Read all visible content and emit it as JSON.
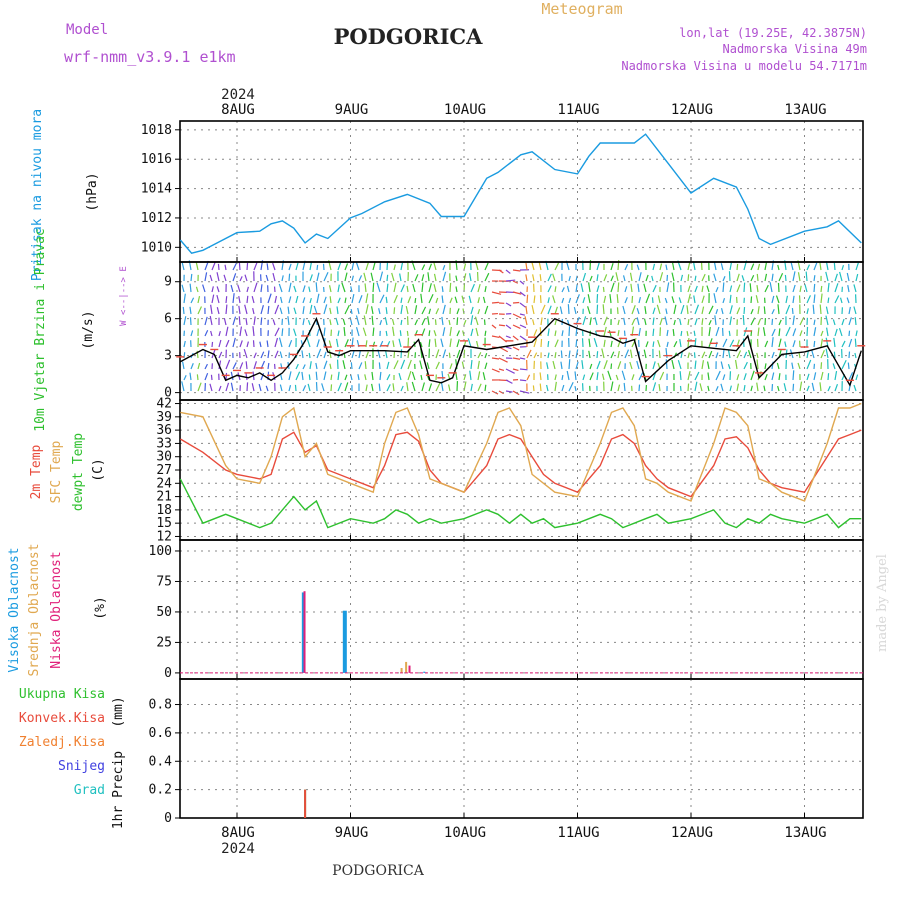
{
  "header": {
    "model_label": "Model",
    "model_value": "wrf-nmm_v3.9.1  e1km",
    "title": "PODGORICA",
    "meteogram_label": "Meteogram",
    "lonlat": "lon,lat (19.25E, 42.3875N)",
    "elevation": "Nadmorska Visina 49m",
    "model_elevation": "Nadmorska Visina u modelu 54.7171m",
    "year_top": "2024",
    "year_bottom": "2024",
    "footer_title": "PODGORICA",
    "credit": "made by Angel"
  },
  "colors": {
    "pressure": "#1a9be0",
    "temp2m": "#e84b3c",
    "sfc_temp": "#e0a850",
    "dewpoint": "#2ec02e",
    "wind_speed": "#000000",
    "label_purple": "#b050d0",
    "label_orange": "#e0b060",
    "cloud_high": "#1a9be0",
    "cloud_mid": "#e0a850",
    "cloud_low": "#e0207a",
    "precip_total": "#2ec02e",
    "precip_conv": "#e84b3c",
    "precip_strat": "#f08030",
    "snow": "#4040e0",
    "hail": "#20c0c0"
  },
  "chart_data": [
    {
      "type": "line",
      "panel": "pressure",
      "ylabel": "Pritisak na nivou mora",
      "unit": "(hPa)",
      "ylim": [
        1009,
        1018.6
      ],
      "yticks": [
        1010,
        1012,
        1014,
        1016,
        1018
      ],
      "x_dates": [
        "8AUG",
        "9AUG",
        "10AUG",
        "11AUG",
        "12AUG",
        "13AUG"
      ],
      "grid": true,
      "x": [
        -0.5,
        -0.4,
        -0.3,
        -0.2,
        0.0,
        0.2,
        0.3,
        0.4,
        0.5,
        0.6,
        0.7,
        0.8,
        1.0,
        1.1,
        1.3,
        1.5,
        1.7,
        1.8,
        2.0,
        2.2,
        2.3,
        2.5,
        2.6,
        2.8,
        3.0,
        3.1,
        3.2,
        3.5,
        3.6,
        3.8,
        4.0,
        4.2,
        4.4,
        4.5,
        4.6,
        4.7,
        5.0,
        5.2,
        5.3,
        5.5
      ],
      "series": [
        {
          "values": [
            1010.5,
            1009.6,
            1009.8,
            1010.2,
            1011.0,
            1011.1,
            1011.6,
            1011.8,
            1011.3,
            1010.3,
            1010.9,
            1010.6,
            1012.0,
            1012.3,
            1013.1,
            1013.6,
            1013.0,
            1012.1,
            1012.1,
            1014.7,
            1015.1,
            1016.3,
            1016.5,
            1015.3,
            1015.0,
            1016.2,
            1017.1,
            1017.1,
            1017.7,
            1015.7,
            1013.7,
            1014.7,
            1014.1,
            1012.6,
            1010.6,
            1010.2,
            1011.1,
            1011.4,
            1011.8,
            1010.3
          ]
        }
      ]
    },
    {
      "type": "line",
      "panel": "wind",
      "ylabel": "10m Vjetar Brzina i Pravac",
      "unit": "(m/s)",
      "legend_compass": [
        "N",
        "E",
        "S",
        "W"
      ],
      "ylim": [
        -0.6,
        10.6
      ],
      "yticks": [
        0,
        3,
        6,
        9
      ],
      "grid": true,
      "x": [
        -0.5,
        -0.3,
        -0.2,
        -0.1,
        0.0,
        0.1,
        0.2,
        0.3,
        0.4,
        0.5,
        0.6,
        0.7,
        0.8,
        0.9,
        1.0,
        1.1,
        1.2,
        1.3,
        1.5,
        1.6,
        1.7,
        1.8,
        1.9,
        2.0,
        2.2,
        2.4,
        2.6,
        2.8,
        3.0,
        3.2,
        3.3,
        3.4,
        3.5,
        3.6,
        3.8,
        4.0,
        4.2,
        4.4,
        4.5,
        4.6,
        4.8,
        5.0,
        5.2,
        5.4,
        5.5
      ],
      "series": [
        {
          "name": "wind speed",
          "values": [
            2.5,
            3.5,
            3.1,
            1.0,
            1.4,
            1.2,
            1.6,
            1.0,
            1.6,
            2.7,
            4.2,
            6.0,
            3.3,
            3.0,
            3.4,
            3.4,
            3.4,
            3.4,
            3.3,
            4.3,
            1.0,
            0.8,
            1.2,
            3.8,
            3.5,
            3.8,
            4.1,
            6.0,
            5.2,
            4.6,
            4.5,
            4.0,
            4.3,
            0.9,
            2.6,
            3.8,
            3.6,
            3.4,
            4.6,
            1.2,
            3.1,
            3.3,
            3.8,
            0.6,
            3.4
          ]
        }
      ]
    },
    {
      "type": "line",
      "panel": "temperature",
      "ylabel": "2m Temp / SFC Temp / dewpt Temp",
      "unit": "(C)",
      "ylim": [
        11.2,
        42.8
      ],
      "yticks": [
        12,
        15,
        18,
        21,
        24,
        27,
        30,
        33,
        36,
        39,
        42
      ],
      "grid": true,
      "x": [
        -0.5,
        -0.3,
        -0.1,
        0.0,
        0.2,
        0.3,
        0.4,
        0.5,
        0.6,
        0.7,
        0.8,
        1.0,
        1.2,
        1.3,
        1.4,
        1.5,
        1.6,
        1.7,
        1.8,
        2.0,
        2.2,
        2.3,
        2.4,
        2.5,
        2.6,
        2.7,
        2.8,
        3.0,
        3.2,
        3.3,
        3.4,
        3.5,
        3.6,
        3.7,
        3.8,
        4.0,
        4.2,
        4.3,
        4.4,
        4.5,
        4.6,
        4.7,
        4.8,
        5.0,
        5.2,
        5.3,
        5.4,
        5.5
      ],
      "series": [
        {
          "name": "2m Temp",
          "values": [
            34,
            31,
            27,
            26,
            25,
            26,
            34,
            35.5,
            31,
            32.5,
            27,
            25,
            23,
            28,
            35,
            35.5,
            33.5,
            27,
            24,
            22,
            28,
            34,
            35,
            34,
            30,
            26,
            24,
            22,
            28,
            34,
            35,
            33,
            28,
            25,
            23,
            21,
            28,
            34,
            34.5,
            32,
            27,
            24,
            23,
            22,
            30,
            34,
            35,
            36
          ]
        },
        {
          "name": "SFC Temp",
          "values": [
            40,
            39,
            28,
            25,
            24,
            30,
            39,
            41,
            30,
            33,
            26,
            24,
            22,
            33,
            40,
            41,
            35,
            25,
            24,
            22,
            33,
            40,
            41,
            37,
            26,
            24,
            22,
            21,
            33,
            40,
            41,
            37,
            25,
            24,
            22,
            20,
            33,
            41,
            40,
            37,
            25,
            24,
            22,
            20,
            33,
            41,
            41,
            42
          ]
        },
        {
          "name": "dewpt Temp",
          "values": [
            25,
            15,
            17,
            16,
            14,
            15,
            18,
            21,
            18,
            20,
            14,
            16,
            15,
            16,
            18,
            17,
            15,
            16,
            15,
            16,
            18,
            17,
            15,
            17,
            15,
            16,
            14,
            15,
            17,
            16,
            14,
            15,
            16,
            17,
            15,
            16,
            18,
            15,
            14,
            16,
            15,
            17,
            16,
            15,
            17,
            14,
            16,
            16
          ]
        }
      ]
    },
    {
      "type": "bar",
      "panel": "clouds",
      "ylabel": "Visoka Oblacnost / Srednja Oblacnost / Niska Oblacnost",
      "unit": "(%)",
      "ylim": [
        -5,
        109
      ],
      "yticks": [
        0,
        25,
        50,
        75,
        100
      ],
      "grid": true,
      "series": [
        {
          "name": "Visoka Oblacnost",
          "bars": [
            {
              "x": 0.95,
              "value": 51
            },
            {
              "x": 0.58,
              "value": 66
            },
            {
              "x": 1.65,
              "value": 1
            }
          ]
        },
        {
          "name": "Srednja Oblacnost",
          "bars": [
            {
              "x": 1.45,
              "value": 4
            },
            {
              "x": 1.49,
              "value": 9
            }
          ]
        },
        {
          "name": "Niska Oblacnost",
          "bars": [
            {
              "x": 0.595,
              "value": 67
            },
            {
              "x": 1.52,
              "value": 6
            }
          ]
        }
      ]
    },
    {
      "type": "bar",
      "panel": "precip",
      "ylabel": "1hr Precip",
      "unit": "(mm)",
      "ylim": [
        0,
        0.98
      ],
      "yticks": [
        0,
        0.2,
        0.4,
        0.6,
        0.8
      ],
      "grid": true,
      "legend": [
        "Ukupna Kisa",
        "Konvek.Kisa",
        "Zaledj.Kisa",
        "Snijeg",
        "Grad"
      ],
      "series": [
        {
          "name": "Ukupna Kisa",
          "bars": [
            {
              "x": 0.6,
              "value": 0.2
            }
          ]
        },
        {
          "name": "Konvek.Kisa",
          "bars": [
            {
              "x": 0.6,
              "value": 0.2
            }
          ]
        }
      ]
    }
  ]
}
